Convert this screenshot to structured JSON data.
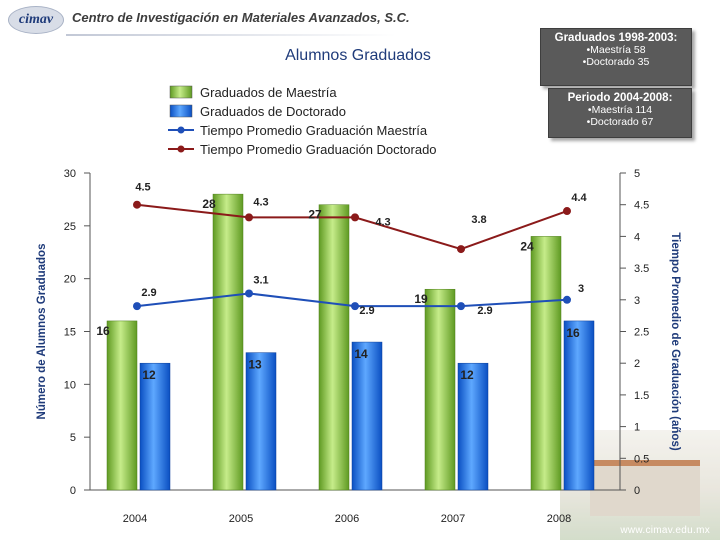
{
  "header": {
    "logo_text": "cimav",
    "org_name": "Centro de Investigación en Materiales Avanzados, S.C."
  },
  "info_boxes": [
    {
      "title": "Graduados 1998-2003:",
      "lines": [
        "•Maestría 58",
        "•Doctorado 35"
      ]
    },
    {
      "title": "Periodo 2004-2008:",
      "lines": [
        "•Maestría 114",
        "•Doctorado 67"
      ]
    }
  ],
  "footer": {
    "url": "www.cimav.edu.mx"
  },
  "colors": {
    "maestria_bar": "#8cc63f",
    "doctorado_bar": "#1e73e8",
    "maestria_line": "#1f4fb8",
    "doctorado_line": "#8b1a1a",
    "axis_title": "#1f3b7a"
  },
  "chart_data": {
    "type": "bar",
    "title": "Alumnos Graduados",
    "categories": [
      "2004",
      "2005",
      "2006",
      "2007",
      "2008"
    ],
    "ylabel": "Número de Alumnos Graduados",
    "y2label": "Tiempo Promedio de Graduación (años)",
    "ylim": [
      0,
      30
    ],
    "y2lim": [
      0,
      5
    ],
    "yticks": [
      0,
      5,
      10,
      15,
      20,
      25,
      30
    ],
    "y2ticks": [
      0,
      0.5,
      1,
      1.5,
      2,
      2.5,
      3,
      3.5,
      4,
      4.5,
      5
    ],
    "legend_position": "top-center",
    "grid": false,
    "series": [
      {
        "name": "Graduados de Maestría",
        "kind": "bar",
        "axis": "left",
        "values": [
          16,
          28,
          27,
          19,
          24
        ]
      },
      {
        "name": "Graduados de Doctorado",
        "kind": "bar",
        "axis": "left",
        "values": [
          12,
          13,
          14,
          12,
          16
        ]
      },
      {
        "name": "Tiempo Promedio Graduación Maestría",
        "kind": "line",
        "axis": "right",
        "values": [
          2.9,
          3.1,
          2.9,
          2.9,
          3.0
        ]
      },
      {
        "name": "Tiempo Promedio Graduación Doctorado",
        "kind": "line",
        "axis": "right",
        "values": [
          4.5,
          4.3,
          4.3,
          3.8,
          4.4
        ]
      }
    ]
  }
}
